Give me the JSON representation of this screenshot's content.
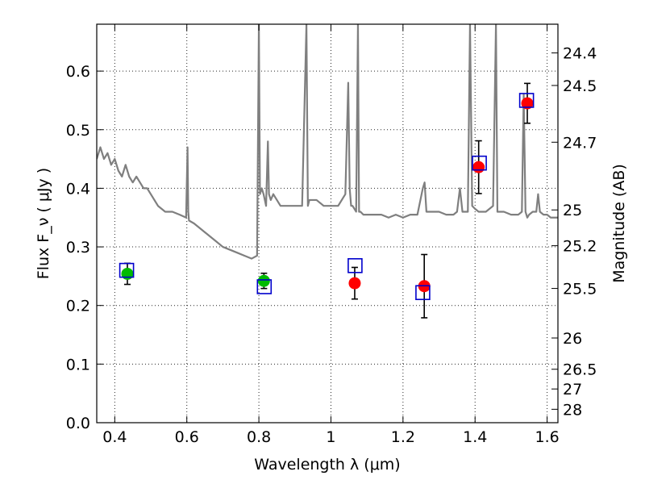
{
  "chart_data": {
    "type": "scatter",
    "xlabel": "Wavelength  λ (μm)",
    "ylabel": "Flux  F_ν  ( μJy )",
    "y2label": "Magnitude (AB)",
    "xlim": [
      0.35,
      1.63
    ],
    "ylim": [
      0.0,
      0.68
    ],
    "grid": true,
    "x_ticks": [
      0.4,
      0.6,
      0.8,
      1.0,
      1.2,
      1.4,
      1.6
    ],
    "x_tick_labels": [
      "0.4",
      "0.6",
      "0.8",
      "1",
      "1.2",
      "1.4",
      "1.6"
    ],
    "y_ticks": [
      0.0,
      0.1,
      0.2,
      0.3,
      0.4,
      0.5,
      0.6
    ],
    "y_tick_labels": [
      "0.0",
      "0.1",
      "0.2",
      "0.3",
      "0.4",
      "0.5",
      "0.6"
    ],
    "magnitude_ticks": [
      24.4,
      24.5,
      24.7,
      25,
      25.2,
      25.5,
      26,
      26.5,
      27,
      28
    ],
    "magnitude_tick_labels": [
      "24.4",
      "24.5",
      "24.7",
      "25",
      "25.2",
      "25.5",
      "26",
      "26.5",
      "27",
      "28"
    ],
    "series": [
      {
        "type": "line",
        "color": "#7f7f7f",
        "x": [
          0.35,
          0.36,
          0.37,
          0.38,
          0.39,
          0.4,
          0.41,
          0.42,
          0.43,
          0.44,
          0.45,
          0.46,
          0.47,
          0.48,
          0.49,
          0.5,
          0.52,
          0.54,
          0.56,
          0.58,
          0.598,
          0.602,
          0.604,
          0.606,
          0.62,
          0.64,
          0.66,
          0.68,
          0.7,
          0.72,
          0.74,
          0.76,
          0.78,
          0.795,
          0.8,
          0.803,
          0.808,
          0.813,
          0.82,
          0.825,
          0.828,
          0.833,
          0.84,
          0.85,
          0.86,
          0.88,
          0.9,
          0.92,
          0.932,
          0.936,
          0.94,
          0.96,
          0.98,
          1.0,
          1.02,
          1.04,
          1.048,
          1.052,
          1.056,
          1.06,
          1.07,
          1.075,
          1.078,
          1.082,
          1.09,
          1.1,
          1.12,
          1.14,
          1.16,
          1.18,
          1.2,
          1.22,
          1.24,
          1.255,
          1.26,
          1.265,
          1.28,
          1.3,
          1.32,
          1.34,
          1.35,
          1.358,
          1.365,
          1.375,
          1.38,
          1.386,
          1.392,
          1.4,
          1.41,
          1.42,
          1.43,
          1.44,
          1.45,
          1.458,
          1.462,
          1.47,
          1.48,
          1.5,
          1.52,
          1.53,
          1.535,
          1.54,
          1.545,
          1.55,
          1.56,
          1.57,
          1.575,
          1.58,
          1.59,
          1.6,
          1.61,
          1.63
        ],
        "y": [
          0.45,
          0.47,
          0.45,
          0.46,
          0.44,
          0.45,
          0.43,
          0.42,
          0.44,
          0.42,
          0.41,
          0.42,
          0.41,
          0.4,
          0.4,
          0.39,
          0.37,
          0.36,
          0.36,
          0.355,
          0.35,
          0.47,
          0.36,
          0.345,
          0.34,
          0.33,
          0.32,
          0.31,
          0.3,
          0.295,
          0.29,
          0.285,
          0.28,
          0.285,
          0.68,
          0.39,
          0.4,
          0.39,
          0.37,
          0.48,
          0.39,
          0.38,
          0.39,
          0.38,
          0.37,
          0.37,
          0.37,
          0.37,
          0.68,
          0.37,
          0.38,
          0.38,
          0.37,
          0.37,
          0.37,
          0.39,
          0.58,
          0.4,
          0.37,
          0.37,
          0.36,
          0.68,
          0.36,
          0.36,
          0.355,
          0.355,
          0.355,
          0.355,
          0.35,
          0.355,
          0.35,
          0.355,
          0.355,
          0.4,
          0.41,
          0.36,
          0.36,
          0.36,
          0.355,
          0.355,
          0.36,
          0.4,
          0.36,
          0.36,
          0.36,
          0.68,
          0.37,
          0.365,
          0.36,
          0.36,
          0.36,
          0.365,
          0.37,
          0.68,
          0.36,
          0.36,
          0.36,
          0.355,
          0.355,
          0.36,
          0.56,
          0.36,
          0.35,
          0.355,
          0.36,
          0.36,
          0.39,
          0.36,
          0.355,
          0.355,
          0.35,
          0.35
        ]
      },
      {
        "type": "scatter",
        "marker": "circle",
        "color": "#00bb00",
        "x": [
          0.435,
          0.814
        ],
        "y": [
          0.254,
          0.242
        ],
        "yerr": [
          0.018,
          0.013
        ]
      },
      {
        "type": "scatter",
        "marker": "circle",
        "color": "#ff0000",
        "x": [
          1.066,
          1.259,
          1.41,
          1.545
        ],
        "y": [
          0.238,
          0.233,
          0.436,
          0.545
        ],
        "yerr": [
          0.027,
          0.054,
          0.045,
          0.034
        ]
      },
      {
        "type": "scatter",
        "marker": "open-square",
        "color": "#0000cc",
        "x": [
          0.433,
          0.815,
          1.067,
          1.255,
          1.412,
          1.543
        ],
        "y": [
          0.26,
          0.232,
          0.268,
          0.222,
          0.443,
          0.55
        ]
      }
    ]
  }
}
